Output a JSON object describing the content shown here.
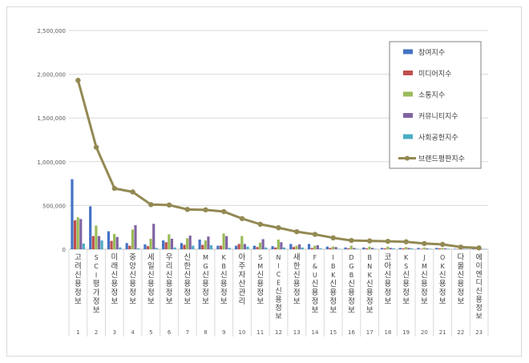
{
  "chart_data": {
    "type": "bar",
    "ylim": [
      0,
      2500000
    ],
    "y_ticks": [
      "0",
      "500,000",
      "1,000,000",
      "1,500,000",
      "2,000,000",
      "2,500,000"
    ],
    "y_tick_values": [
      0,
      500000,
      1000000,
      1500000,
      2000000,
      2500000
    ],
    "grid": "horizontal",
    "legend_position": "top-right",
    "ranks": [
      "1",
      "2",
      "3",
      "4",
      "5",
      "6",
      "7",
      "8",
      "9",
      "10",
      "11",
      "12",
      "13",
      "14",
      "15",
      "16",
      "17",
      "18",
      "19",
      "20",
      "21",
      "22",
      "23"
    ],
    "categories": [
      "고려신용정보",
      "SCI평가정보",
      "미래신용정보",
      "중앙신용정보",
      "세일신용정보",
      "우리신용정보",
      "신한신용정보",
      "MG신용정보",
      "KB신용정보",
      "아주자산관리",
      "SM신용정보",
      "NICE신용정보",
      "새한신용정보",
      "F&U신용정보",
      "IBK신용정보",
      "DGB신용정보",
      "BNK신용정보",
      "코아신용정보",
      "KS신용정보",
      "JM신용정보",
      "OK신용정보",
      "다울신용정보",
      "에이엔디신용정보"
    ],
    "series": [
      {
        "name": "참여지수",
        "type": "bar",
        "color": "#4472c4",
        "values": [
          800000,
          490000,
          205000,
          70000,
          55000,
          100000,
          70000,
          110000,
          40000,
          40000,
          40000,
          35000,
          60000,
          60000,
          30000,
          20000,
          20000,
          15000,
          15000,
          15000,
          15000,
          5000,
          5000
        ]
      },
      {
        "name": "미디어지수",
        "type": "bar",
        "color": "#c0504d",
        "values": [
          330000,
          150000,
          95000,
          40000,
          35000,
          80000,
          50000,
          50000,
          40000,
          60000,
          25000,
          20000,
          25000,
          15000,
          15000,
          10000,
          10000,
          10000,
          10000,
          5000,
          10000,
          3000,
          3000
        ]
      },
      {
        "name": "소통지수",
        "type": "bar",
        "color": "#9bbb59",
        "values": [
          365000,
          270000,
          175000,
          225000,
          120000,
          170000,
          125000,
          100000,
          180000,
          150000,
          75000,
          110000,
          40000,
          40000,
          30000,
          40000,
          30000,
          30000,
          25000,
          20000,
          15000,
          10000,
          3000
        ]
      },
      {
        "name": "커뮤니티지수",
        "type": "bar",
        "color": "#8064a2",
        "values": [
          345000,
          150000,
          140000,
          275000,
          290000,
          120000,
          155000,
          145000,
          150000,
          60000,
          115000,
          80000,
          55000,
          45000,
          25000,
          15000,
          15000,
          15000,
          15000,
          10000,
          10000,
          3000,
          3000
        ]
      },
      {
        "name": "사회공헌지수",
        "type": "bar",
        "color": "#4bacc6",
        "values": [
          65000,
          100000,
          20000,
          10000,
          15000,
          20000,
          40000,
          45000,
          15000,
          30000,
          20000,
          20000,
          20000,
          10000,
          5000,
          5000,
          5000,
          10000,
          10000,
          5000,
          5000,
          3000,
          3000
        ]
      },
      {
        "name": "브랜드평판지수",
        "type": "line",
        "color": "#938953",
        "values": [
          1930000,
          1165000,
          695000,
          655000,
          510000,
          505000,
          455000,
          450000,
          430000,
          350000,
          285000,
          245000,
          200000,
          170000,
          130000,
          100000,
          95000,
          90000,
          85000,
          65000,
          55000,
          25000,
          15000
        ]
      }
    ]
  }
}
